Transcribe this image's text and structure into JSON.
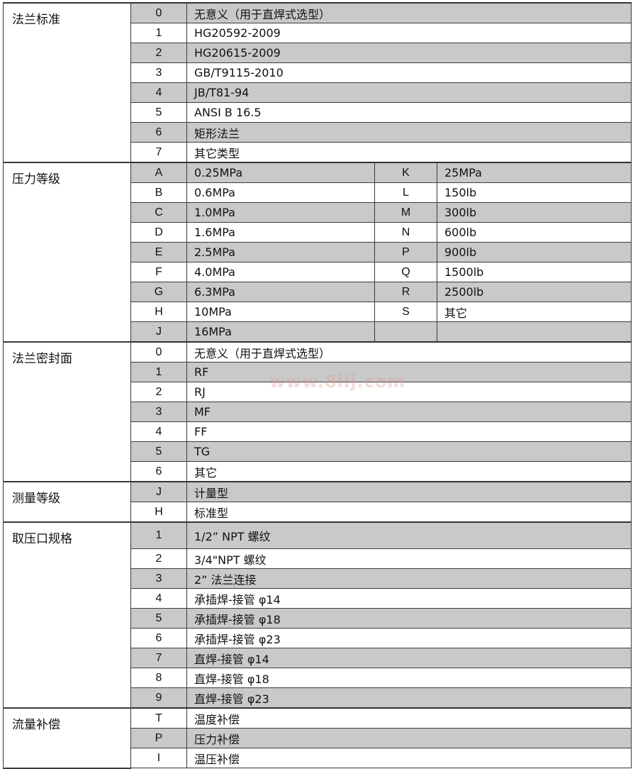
{
  "sections": [
    {
      "title": "法兰标准",
      "two_col": false,
      "rows": [
        {
          "code": "0",
          "value": "无意义（用于直焊式选型）",
          "shade": true
        },
        {
          "code": "1",
          "value": "HG20592-2009",
          "shade": false
        },
        {
          "code": "2",
          "value": "HG20615-2009",
          "shade": true
        },
        {
          "code": "3",
          "value": "GB/T9115-2010",
          "shade": false
        },
        {
          "code": "4",
          "value": "JB/T81-94",
          "shade": true
        },
        {
          "code": "5",
          "value": "ANSI B 16.5",
          "shade": false
        },
        {
          "code": "6",
          "value": "矩形法兰",
          "shade": true
        },
        {
          "code": "7",
          "value": "其它类型",
          "shade": false
        }
      ]
    },
    {
      "title": "压力等级",
      "two_col": true,
      "rows": [
        {
          "code": "A",
          "value": "0.25MPa",
          "code2": "K",
          "value2": "25MPa",
          "shade": true
        },
        {
          "code": "B",
          "value": "0.6MPa",
          "code2": "L",
          "value2": "150lb",
          "shade": false
        },
        {
          "code": "C",
          "value": "1.0MPa",
          "code2": "M",
          "value2": "300lb",
          "shade": true
        },
        {
          "code": "D",
          "value": "1.6MPa",
          "code2": "N",
          "value2": "600lb",
          "shade": false
        },
        {
          "code": "E",
          "value": "2.5MPa",
          "code2": "P",
          "value2": "900lb",
          "shade": true
        },
        {
          "code": "F",
          "value": "4.0MPa",
          "code2": "Q",
          "value2": "1500lb",
          "shade": false
        },
        {
          "code": "G",
          "value": "6.3MPa",
          "code2": "R",
          "value2": "2500lb",
          "shade": true
        },
        {
          "code": "H",
          "value": "10MPa",
          "code2": "S",
          "value2": "其它",
          "shade": false
        },
        {
          "code": "J",
          "value": "16MPa",
          "code2": "",
          "value2": "",
          "shade": true
        }
      ]
    },
    {
      "title": "法兰密封面",
      "two_col": false,
      "rows": [
        {
          "code": "0",
          "value": "无意义（用于直焊式选型）",
          "shade": false
        },
        {
          "code": "1",
          "value": "RF",
          "shade": true
        },
        {
          "code": "2",
          "value": "RJ",
          "shade": false
        },
        {
          "code": "3",
          "value": "MF",
          "shade": true
        },
        {
          "code": "4",
          "value": "FF",
          "shade": false
        },
        {
          "code": "5",
          "value": "TG",
          "shade": true
        },
        {
          "code": "6",
          "value": "其它",
          "shade": false
        }
      ]
    },
    {
      "title": "测量等级",
      "two_col": false,
      "rows": [
        {
          "code": "J",
          "value": "计量型",
          "shade": true
        },
        {
          "code": "H",
          "value": "标准型",
          "shade": false
        }
      ]
    },
    {
      "title": "取压口规格",
      "two_col": false,
      "rows": [
        {
          "code": "1",
          "value": "1/2” NPT 螺纹",
          "shade": true,
          "tall": true
        },
        {
          "code": "2",
          "value": "3/4\"NPT 螺纹",
          "shade": false
        },
        {
          "code": "3",
          "value": "2” 法兰连接",
          "shade": true
        },
        {
          "code": "4",
          "value": "承插焊-接管 φ14",
          "shade": false
        },
        {
          "code": "5",
          "value": "承插焊-接管 φ18",
          "shade": true
        },
        {
          "code": "6",
          "value": "承插焊-接管 φ23",
          "shade": false
        },
        {
          "code": "7",
          "value": "直焊-接管 φ14",
          "shade": true
        },
        {
          "code": "8",
          "value": "直焊-接管 φ18",
          "shade": false
        },
        {
          "code": "9",
          "value": "直焊-接管 φ23",
          "shade": true
        }
      ]
    },
    {
      "title": "流量补偿",
      "two_col": false,
      "rows": [
        {
          "code": "T",
          "value": "温度补偿",
          "shade": false
        },
        {
          "code": "P",
          "value": "压力补偿",
          "shade": true
        },
        {
          "code": "I",
          "value": "温压补偿",
          "shade": false
        }
      ]
    }
  ],
  "watermark": "www.8llj.com",
  "colors": {
    "shade": "#c9c9c9",
    "border": "#3a3a3a"
  }
}
